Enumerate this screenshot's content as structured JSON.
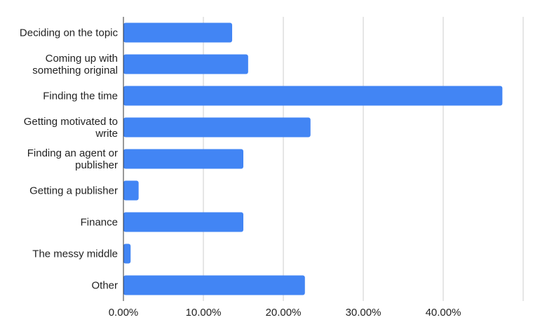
{
  "chart_data": {
    "type": "bar",
    "orientation": "horizontal",
    "categories": [
      "Deciding on the topic",
      "Coming up with something original",
      "Finding the time",
      "Getting motivated to write",
      "Finding an agent or publisher",
      "Getting a publisher",
      "Finance",
      "The messy middle",
      "Other"
    ],
    "category_lines": [
      [
        "Deciding on the topic"
      ],
      [
        "Coming up with",
        "something original"
      ],
      [
        "Finding the time"
      ],
      [
        "Getting motivated to",
        "write"
      ],
      [
        "Finding an agent or",
        "publisher"
      ],
      [
        "Getting a publisher"
      ],
      [
        "Finance"
      ],
      [
        "The messy middle"
      ],
      [
        "Other"
      ]
    ],
    "values": [
      13.6,
      15.6,
      47.4,
      23.4,
      15.0,
      1.9,
      15.0,
      0.9,
      22.7
    ],
    "xlim": [
      0,
      50
    ],
    "xticks": [
      0,
      10,
      20,
      30,
      40
    ],
    "xtick_labels": [
      "0.00%",
      "10.00%",
      "20.00%",
      "30.00%",
      "40.00%"
    ],
    "title": "",
    "xlabel": "",
    "ylabel": "",
    "grid": "vertical",
    "legend": "none",
    "bar_color": "#4285f4",
    "grid_color": "#cccccc",
    "axis_color": "#333333"
  }
}
